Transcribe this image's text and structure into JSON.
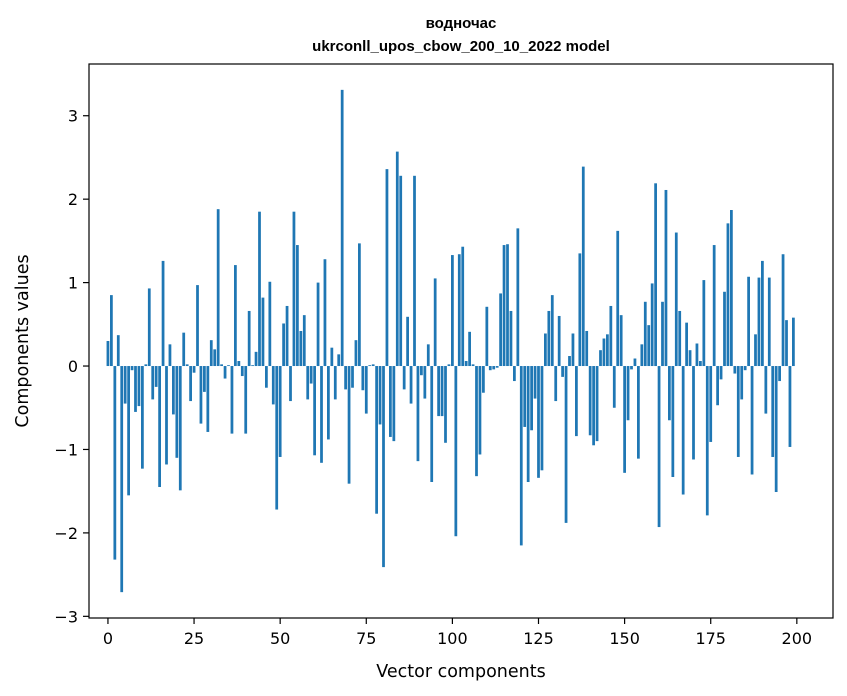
{
  "chart_data": {
    "type": "bar",
    "title": "водночас",
    "subtitle": "ukrconll_upos_cbow_200_10_2022 model",
    "xlabel": "Vector components",
    "ylabel": "Components values",
    "xlim": [
      -5.5,
      210.5
    ],
    "ylim": [
      -3.02,
      3.62
    ],
    "xticks": [
      0,
      25,
      50,
      75,
      100,
      125,
      150,
      175,
      200
    ],
    "yticks": [
      -3,
      -2,
      -1,
      0,
      1,
      2,
      3
    ],
    "xtick_labels": [
      "0",
      "25",
      "50",
      "75",
      "100",
      "125",
      "150",
      "175",
      "200"
    ],
    "ytick_labels": [
      "−3",
      "−2",
      "−1",
      "0",
      "1",
      "2",
      "3"
    ],
    "grid": false,
    "bar_color": "#1f77b4",
    "values": [
      0.3,
      0.85,
      -2.32,
      0.37,
      -2.71,
      -0.45,
      -1.55,
      -0.05,
      -0.55,
      -0.48,
      -1.23,
      0.02,
      0.93,
      -0.4,
      -0.25,
      -1.45,
      1.26,
      -1.18,
      0.26,
      -0.58,
      -1.1,
      -1.49,
      0.4,
      0.02,
      -0.42,
      -0.08,
      0.97,
      -0.69,
      -0.31,
      -0.79,
      0.31,
      0.2,
      1.88,
      0.02,
      -0.15,
      0.01,
      -0.81,
      1.21,
      0.06,
      -0.12,
      -0.81,
      0.66,
      0.01,
      0.17,
      1.85,
      0.82,
      -0.26,
      1.01,
      -0.46,
      -1.72,
      -1.09,
      0.51,
      0.72,
      -0.42,
      1.85,
      1.45,
      0.42,
      0.61,
      -0.4,
      -0.21,
      -1.07,
      1.0,
      -1.16,
      1.28,
      -0.88,
      0.22,
      -0.4,
      0.14,
      3.31,
      -0.28,
      -1.41,
      -0.26,
      0.31,
      1.47,
      -0.29,
      -0.57,
      0.01,
      0.02,
      -1.77,
      -0.7,
      -2.41,
      2.36,
      -0.85,
      -0.9,
      2.57,
      2.28,
      -0.28,
      0.59,
      -0.45,
      2.28,
      -1.14,
      -0.11,
      -0.39,
      0.26,
      -1.39,
      1.05,
      -0.6,
      -0.6,
      -0.92,
      0.02,
      1.33,
      -2.04,
      1.34,
      1.43,
      0.06,
      0.41,
      0.02,
      -1.32,
      -1.06,
      -0.32,
      0.71,
      -0.05,
      -0.04,
      -0.02,
      0.87,
      1.45,
      1.46,
      0.66,
      -0.18,
      1.65,
      -2.15,
      -0.73,
      -1.39,
      -0.77,
      -0.39,
      -1.34,
      -1.25,
      0.39,
      0.66,
      0.85,
      -0.42,
      0.6,
      -0.13,
      -1.88,
      0.12,
      0.39,
      -0.84,
      1.35,
      2.39,
      0.42,
      -0.83,
      -0.95,
      -0.9,
      0.19,
      0.33,
      0.38,
      0.72,
      -0.5,
      1.62,
      0.61,
      -1.28,
      -0.65,
      -0.04,
      0.09,
      -1.11,
      0.26,
      0.77,
      0.49,
      0.99,
      2.19,
      -1.93,
      0.77,
      2.11,
      -0.65,
      -1.33,
      1.6,
      0.66,
      -1.54,
      0.52,
      0.19,
      -1.12,
      0.27,
      0.06,
      1.03,
      -1.79,
      -0.91,
      1.45,
      -0.47,
      -0.16,
      0.89,
      1.71,
      1.87,
      -0.09,
      -1.09,
      -0.4,
      -0.05,
      1.07,
      -1.3,
      0.38,
      1.06,
      1.26,
      -0.57,
      1.06,
      -1.09,
      -1.51,
      -0.18,
      1.34,
      0.55,
      -0.97,
      0.58
    ]
  }
}
